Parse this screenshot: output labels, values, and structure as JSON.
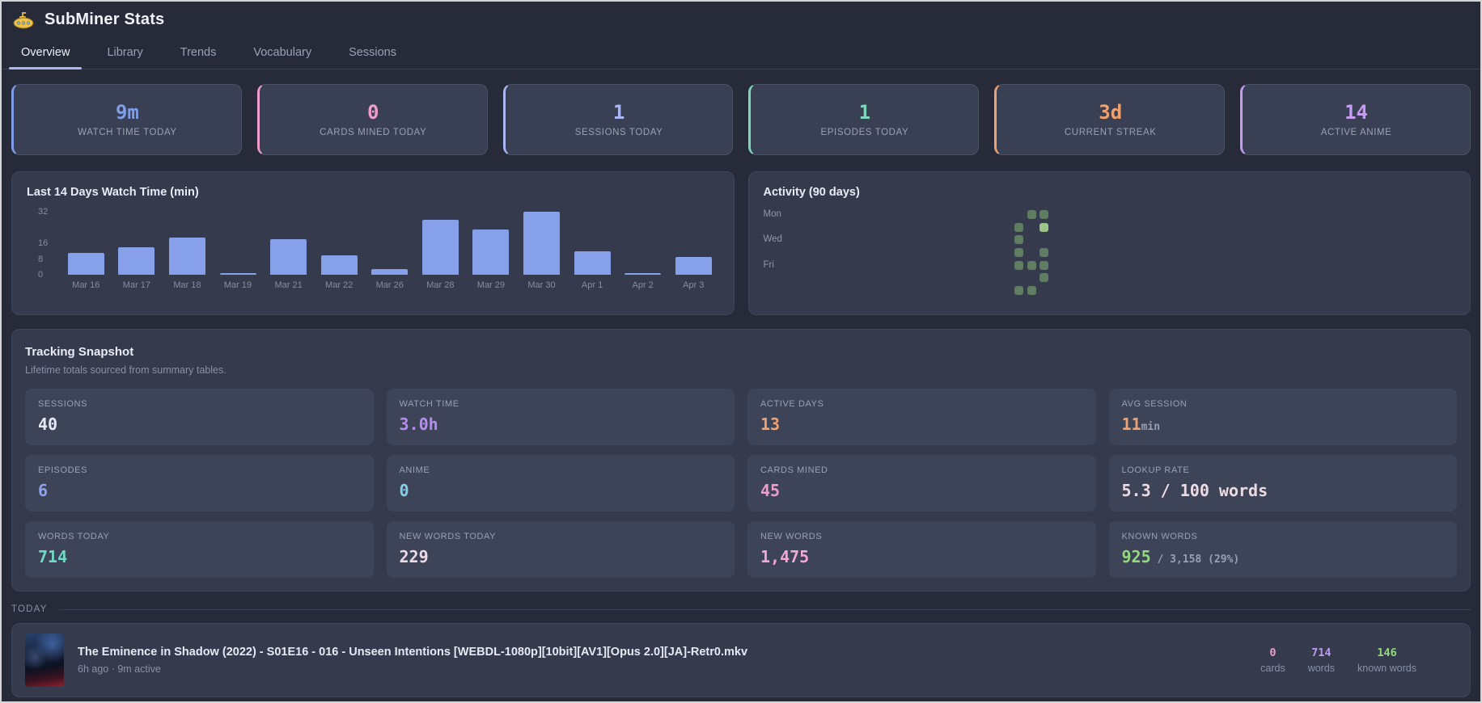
{
  "header": {
    "title": "SubMiner Stats",
    "icon": "submarine-icon"
  },
  "tabs": [
    {
      "label": "Overview",
      "active": true
    },
    {
      "label": "Library",
      "active": false
    },
    {
      "label": "Trends",
      "active": false
    },
    {
      "label": "Vocabulary",
      "active": false
    },
    {
      "label": "Sessions",
      "active": false
    }
  ],
  "stat_cards": [
    {
      "value": "9m",
      "label": "WATCH TIME TODAY",
      "color": "#7f9de8"
    },
    {
      "value": "0",
      "label": "CARDS MINED TODAY",
      "color": "#ec9dcb"
    },
    {
      "value": "1",
      "label": "SESSIONS TODAY",
      "color": "#a9b8f2"
    },
    {
      "value": "1",
      "label": "EPISODES TODAY",
      "color": "#7fd6bb"
    },
    {
      "value": "3d",
      "label": "CURRENT STREAK",
      "color": "#efa16f"
    },
    {
      "value": "14",
      "label": "ACTIVE ANIME",
      "color": "#c49cf2"
    }
  ],
  "chart_data": {
    "type": "bar",
    "title": "Last 14 Days Watch Time (min)",
    "categories": [
      "Mar 16",
      "Mar 17",
      "Mar 18",
      "Mar 19",
      "Mar 21",
      "Mar 22",
      "Mar 26",
      "Mar 28",
      "Mar 29",
      "Mar 30",
      "Apr 1",
      "Apr 2",
      "Apr 3"
    ],
    "values": [
      11,
      14,
      19,
      1,
      18,
      10,
      3,
      28,
      23,
      32,
      12,
      1,
      9
    ],
    "xlabel": "",
    "ylabel": "",
    "ylim": [
      0,
      32
    ],
    "yticks": [
      0,
      8,
      16,
      32
    ],
    "grid": false,
    "bar_color": "#86a1ea"
  },
  "activity": {
    "title": "Activity (90 days)",
    "day_labels": [
      "Mon",
      "Wed",
      "Fri"
    ],
    "weeks": 13,
    "cell_colors": {
      "1": "#5e7d63",
      "2": "#9cc489"
    },
    "cells": [
      {
        "week": 9,
        "day": 2,
        "level": 1
      },
      {
        "week": 9,
        "day": 3,
        "level": 1
      },
      {
        "week": 9,
        "day": 4,
        "level": 1
      },
      {
        "week": 9,
        "day": 5,
        "level": 1
      },
      {
        "week": 9,
        "day": 7,
        "level": 1
      },
      {
        "week": 10,
        "day": 1,
        "level": 1
      },
      {
        "week": 10,
        "day": 5,
        "level": 1
      },
      {
        "week": 10,
        "day": 7,
        "level": 1
      },
      {
        "week": 11,
        "day": 1,
        "level": 1
      },
      {
        "week": 11,
        "day": 2,
        "level": 2
      },
      {
        "week": 11,
        "day": 4,
        "level": 1
      },
      {
        "week": 11,
        "day": 5,
        "level": 1
      },
      {
        "week": 11,
        "day": 6,
        "level": 1
      }
    ]
  },
  "snapshot": {
    "title": "Tracking Snapshot",
    "subtitle": "Lifetime totals sourced from summary tables.",
    "tiles": [
      {
        "label": "SESSIONS",
        "value": "40",
        "suffix": "",
        "value_color": "#e7eaf6"
      },
      {
        "label": "WATCH TIME",
        "value": "3.0h",
        "suffix": "",
        "value_color": "#b78cf0"
      },
      {
        "label": "ACTIVE DAYS",
        "value": "13",
        "suffix": "",
        "value_color": "#efa16f"
      },
      {
        "label": "AVG SESSION",
        "value": "11",
        "suffix": "min",
        "value_color": "#efa16f"
      },
      {
        "label": "EPISODES",
        "value": "6",
        "suffix": "",
        "value_color": "#8fa2ee"
      },
      {
        "label": "ANIME",
        "value": "0",
        "suffix": "",
        "value_color": "#7fd0e8"
      },
      {
        "label": "CARDS MINED",
        "value": "45",
        "suffix": "",
        "value_color": "#ec9dcb"
      },
      {
        "label": "LOOKUP RATE",
        "value": "5.3 / 100 words",
        "suffix": "",
        "value_color": "#eddbe4"
      },
      {
        "label": "WORDS TODAY",
        "value": "714",
        "suffix": "",
        "value_color": "#6fd9c3"
      },
      {
        "label": "NEW WORDS TODAY",
        "value": "229",
        "suffix": "",
        "value_color": "#eddbe4"
      },
      {
        "label": "NEW WORDS",
        "value": "1,475",
        "suffix": "",
        "value_color": "#f2a8d4"
      },
      {
        "label": "KNOWN WORDS",
        "value": "925",
        "suffix": " / 3,158 (29%)",
        "value_color": "#93d87e"
      }
    ]
  },
  "today": {
    "section_label": "TODAY",
    "item": {
      "title": "The Eminence in Shadow (2022) - S01E16 - 016 - Unseen Intentions [WEBDL-1080p][10bit][AV1][Opus 2.0][JA]-Retr0.mkv",
      "meta": "6h ago · 9m active",
      "stats": [
        {
          "value": "0",
          "label": "cards",
          "color": "#ec9dcb"
        },
        {
          "value": "714",
          "label": "words",
          "color": "#b99bf0"
        },
        {
          "value": "146",
          "label": "known words",
          "color": "#93d87e"
        }
      ]
    }
  }
}
